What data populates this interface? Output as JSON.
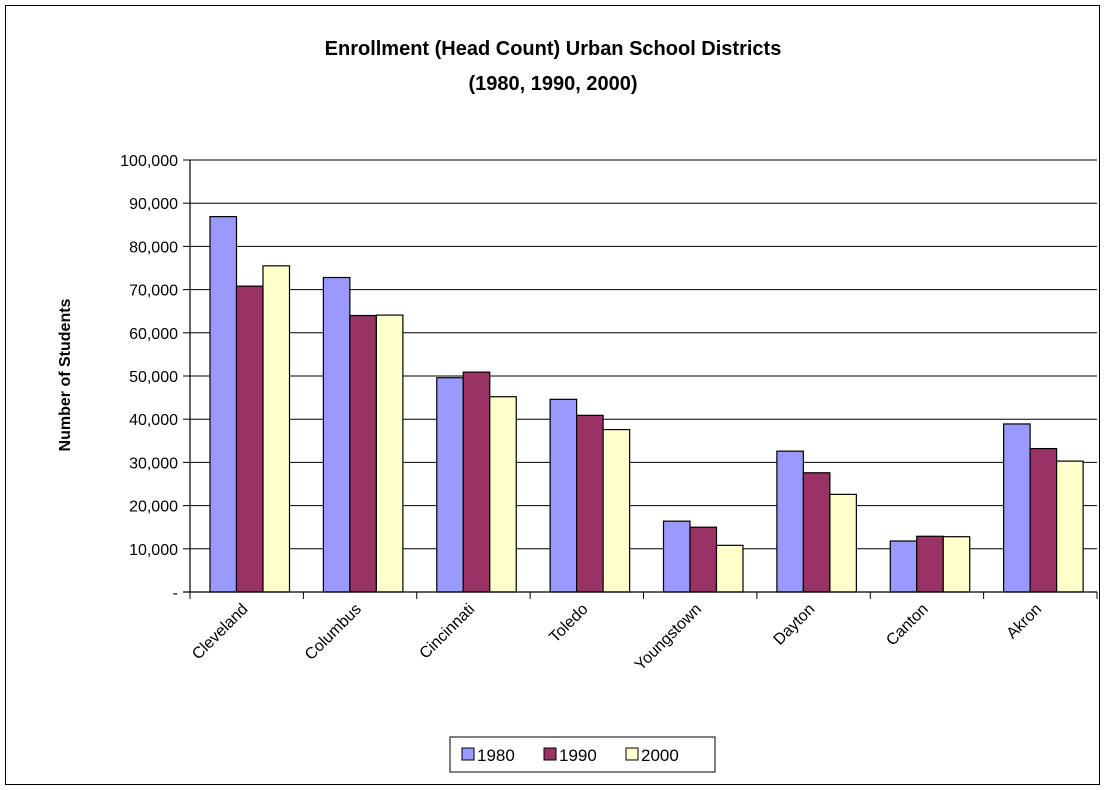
{
  "chart_data": {
    "type": "bar",
    "title_line1": "Enrollment (Head Count) Urban School Districts",
    "title_line2": "(1980, 1990, 2000)",
    "xlabel": "",
    "ylabel": "Number of Students",
    "categories": [
      "Cleveland",
      "Columbus",
      "Cincinnati",
      "Toledo",
      "Youngstown",
      "Dayton",
      "Canton",
      "Akron"
    ],
    "series": [
      {
        "name": "1980",
        "color": "#9999ff",
        "values": [
          86900,
          72800,
          49600,
          44600,
          16400,
          32600,
          11800,
          38900
        ]
      },
      {
        "name": "1990",
        "color": "#993366",
        "values": [
          70800,
          64000,
          50900,
          40900,
          15000,
          27600,
          12900,
          33200
        ]
      },
      {
        "name": "2000",
        "color": "#ffffcc",
        "values": [
          75500,
          64100,
          45200,
          37600,
          10800,
          22600,
          12800,
          30300
        ]
      }
    ],
    "ylim": [
      0,
      100000
    ],
    "yticks": [
      0,
      10000,
      20000,
      30000,
      40000,
      50000,
      60000,
      70000,
      80000,
      90000,
      100000
    ],
    "ytick_labels": [
      "-",
      "10,000",
      "20,000",
      "30,000",
      "40,000",
      "50,000",
      "60,000",
      "70,000",
      "80,000",
      "90,000",
      "100,000"
    ],
    "grid": true,
    "legend_position": "bottom"
  }
}
